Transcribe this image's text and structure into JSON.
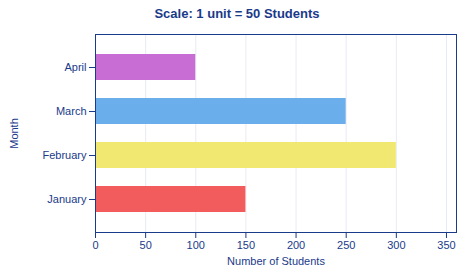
{
  "chart_data": {
    "type": "bar",
    "orientation": "horizontal",
    "title": "Scale: 1 unit = 50 Students",
    "categories": [
      "January",
      "February",
      "March",
      "April"
    ],
    "values": [
      150,
      300,
      250,
      100
    ],
    "colors": [
      "#f25c5c",
      "#f0e870",
      "#6aaeec",
      "#c86dd4"
    ],
    "xlabel": "Number of Students",
    "ylabel": "Month",
    "xlim": [
      0,
      360
    ],
    "xticks": [
      0,
      50,
      100,
      150,
      200,
      250,
      300,
      350
    ],
    "grid": true
  }
}
